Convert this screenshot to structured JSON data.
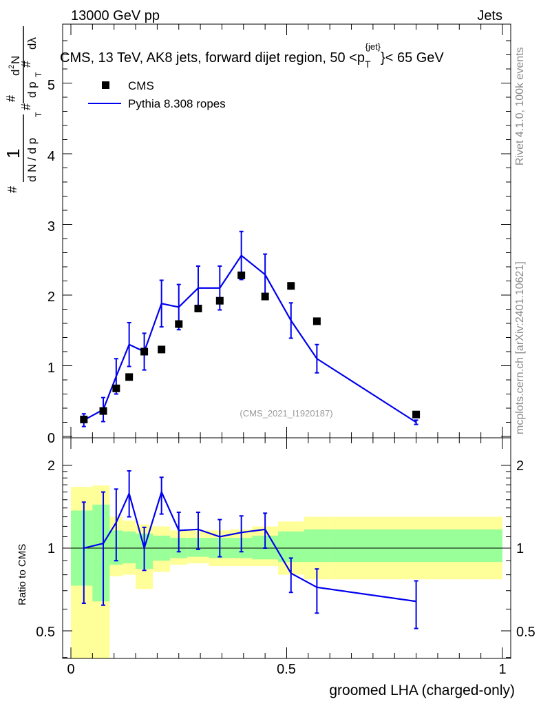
{
  "header": {
    "left": "13000 GeV pp",
    "right": "Jets"
  },
  "side_texts": {
    "rivet": "Rivet 4.1.0,  100k events",
    "mcplots": "mcplots.cern.ch [arXiv:2401.10621]"
  },
  "chart_data": [
    {
      "type": "scatter",
      "panel": "main",
      "title_main": "CMS, 13 TeV, AK8 jets, forward dijet region, 50 <p",
      "title_sub": "T",
      "title_sup": "{jet}",
      "title_end": "}< 65 GeV",
      "ylabel": "1/dN/dp_T  d²N/dp_T dλ",
      "ylabel_parts": {
        "hash1": "#",
        "one": "1",
        "dN": "d N / d p",
        "T1": "T",
        "hash2": "#",
        "d2N": "d",
        "two": "2",
        "N": "N",
        "hash3": "#",
        "dpT": "d p",
        "T2": "T",
        "hash4": "#",
        "dlam": "dλ"
      },
      "ylim": [
        0,
        5.6
      ],
      "yticks": [
        0,
        1,
        2,
        3,
        4,
        5
      ],
      "ytick_labels": [
        "0",
        "1",
        "2",
        "3",
        "4",
        "5"
      ],
      "xlim": [
        -0.02,
        1.0
      ],
      "watermark": "(CMS_2021_I1920187)",
      "legend": {
        "position": "top-left",
        "entries": [
          "CMS",
          "Pythia 8.308 ropes"
        ]
      },
      "series": [
        {
          "name": "CMS",
          "style": "markers",
          "color": "#000000",
          "x": [
            0.03,
            0.075,
            0.105,
            0.135,
            0.17,
            0.21,
            0.25,
            0.295,
            0.345,
            0.395,
            0.45,
            0.51,
            0.57,
            0.8
          ],
          "values": [
            0.24,
            0.36,
            0.68,
            0.84,
            1.2,
            1.23,
            1.59,
            1.81,
            1.92,
            2.28,
            1.98,
            2.13,
            1.63,
            0.31
          ]
        },
        {
          "name": "Pythia 8.308 ropes",
          "style": "line",
          "color": "#0000ee",
          "x": [
            0.03,
            0.075,
            0.105,
            0.135,
            0.17,
            0.21,
            0.25,
            0.295,
            0.345,
            0.395,
            0.45,
            0.51,
            0.57,
            0.8
          ],
          "values": [
            0.23,
            0.38,
            0.85,
            1.3,
            1.2,
            1.88,
            1.83,
            2.1,
            2.1,
            2.56,
            2.29,
            1.64,
            1.1,
            0.2
          ],
          "err": [
            0.09,
            0.17,
            0.25,
            0.31,
            0.26,
            0.33,
            0.32,
            0.31,
            0.31,
            0.34,
            0.29,
            0.25,
            0.2,
            0.03
          ]
        }
      ]
    },
    {
      "type": "line",
      "panel": "ratio",
      "ylabel": "Ratio to CMS",
      "ylim": [
        0.35,
        2.25
      ],
      "yticks": [
        0.5,
        1,
        2
      ],
      "ytick_labels": [
        "0.5",
        "1",
        "2"
      ],
      "xlim": [
        -0.02,
        1.0
      ],
      "xticks": [
        0,
        0.5,
        1
      ],
      "xtick_labels": [
        "0",
        "0.5",
        "1"
      ],
      "xlabel": "groomed LHA (charged-only)",
      "bands": {
        "edges": [
          0.0,
          0.05,
          0.09,
          0.12,
          0.15,
          0.19,
          0.23,
          0.27,
          0.32,
          0.37,
          0.42,
          0.48,
          0.54,
          0.6,
          1.0
        ],
        "yellow_lo": [
          0.35,
          0.35,
          0.79,
          0.8,
          0.71,
          0.82,
          0.87,
          0.88,
          0.86,
          0.86,
          0.86,
          0.8,
          0.77,
          0.77
        ],
        "yellow_hi": [
          1.67,
          1.69,
          1.3,
          1.26,
          1.22,
          1.2,
          1.16,
          1.16,
          1.16,
          1.17,
          1.2,
          1.25,
          1.3,
          1.3
        ],
        "green_lo": [
          0.73,
          0.64,
          0.87,
          0.88,
          0.84,
          0.9,
          0.92,
          0.93,
          0.92,
          0.92,
          0.91,
          0.89,
          0.89,
          0.89
        ],
        "green_hi": [
          1.37,
          1.44,
          1.16,
          1.15,
          1.13,
          1.11,
          1.09,
          1.09,
          1.09,
          1.09,
          1.11,
          1.15,
          1.17,
          1.17
        ],
        "yellow_color": "#ffff99",
        "green_color": "#99ff99"
      },
      "series": [
        {
          "name": "Pythia 8.308 ropes / CMS",
          "color": "#0000ee",
          "x": [
            0.03,
            0.075,
            0.105,
            0.135,
            0.17,
            0.21,
            0.25,
            0.295,
            0.345,
            0.395,
            0.45,
            0.51,
            0.57,
            0.8
          ],
          "values": [
            1.0,
            1.04,
            1.24,
            1.58,
            1.0,
            1.6,
            1.16,
            1.17,
            1.1,
            1.14,
            1.17,
            0.81,
            0.72,
            0.64
          ],
          "err_lo": [
            0.37,
            0.42,
            0.34,
            0.28,
            0.17,
            0.27,
            0.19,
            0.18,
            0.17,
            0.17,
            0.17,
            0.12,
            0.14,
            0.13
          ],
          "err_hi": [
            0.47,
            0.56,
            0.4,
            0.33,
            0.19,
            0.21,
            0.19,
            0.18,
            0.17,
            0.17,
            0.17,
            0.11,
            0.12,
            0.12
          ]
        }
      ]
    }
  ]
}
